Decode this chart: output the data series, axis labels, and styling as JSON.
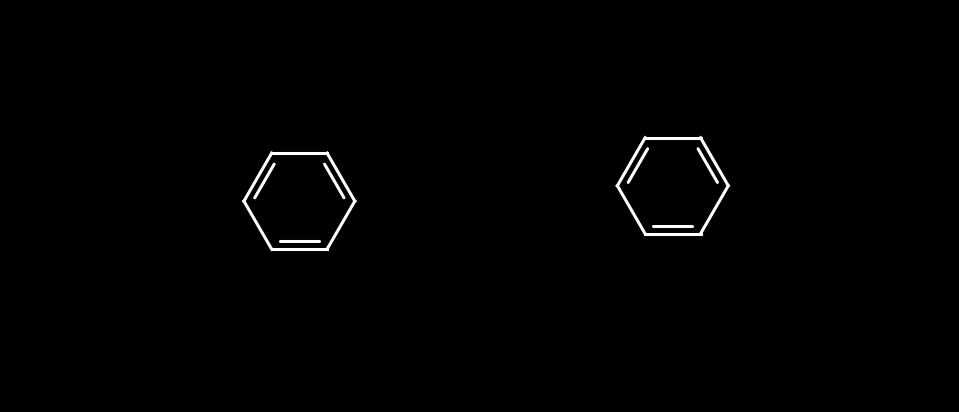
{
  "background_color": "#000000",
  "bond_color": "#ffffff",
  "lw": 2.0,
  "font_size": 16,
  "colors": {
    "F": "#7CB518",
    "O": "#FF0000",
    "S": "#B8860B",
    "N": "#0000FF",
    "C": "#ffffff",
    "H": "#ffffff"
  },
  "figsize": [
    9.59,
    4.12
  ],
  "dpi": 100
}
